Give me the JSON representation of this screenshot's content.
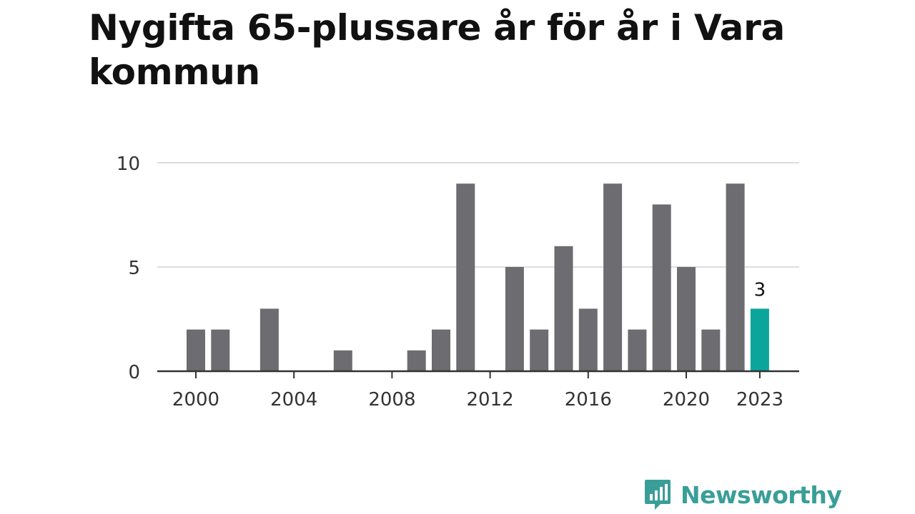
{
  "colors": {
    "bar": "#6d6c71",
    "highlight": "#0ba59b",
    "grid": "#dddddd",
    "axis": "#333333",
    "brand": "#3a9e98"
  },
  "logo": {
    "text": "Newsworthy",
    "icon": "newsworthy-chart-bubble-icon"
  },
  "chart_data": {
    "type": "bar",
    "title": "Nygifta 65-plussare år för år i Vara kommun",
    "xlabel": "",
    "ylabel": "",
    "ylim": [
      0,
      10
    ],
    "yticks": [
      0,
      5,
      10
    ],
    "xticks": [
      "2000",
      "2004",
      "2008",
      "2012",
      "2016",
      "2020",
      "2023"
    ],
    "grid": true,
    "highlight_category": "2023",
    "highlight_label": "3",
    "categories": [
      "2000",
      "2001",
      "2002",
      "2003",
      "2004",
      "2005",
      "2006",
      "2007",
      "2008",
      "2009",
      "2010",
      "2011",
      "2012",
      "2013",
      "2014",
      "2015",
      "2016",
      "2017",
      "2018",
      "2019",
      "2020",
      "2021",
      "2022",
      "2023"
    ],
    "values": [
      2,
      2,
      0,
      3,
      0,
      0,
      1,
      0,
      0,
      1,
      2,
      9,
      0,
      5,
      2,
      6,
      3,
      9,
      2,
      8,
      5,
      2,
      9,
      3
    ]
  }
}
